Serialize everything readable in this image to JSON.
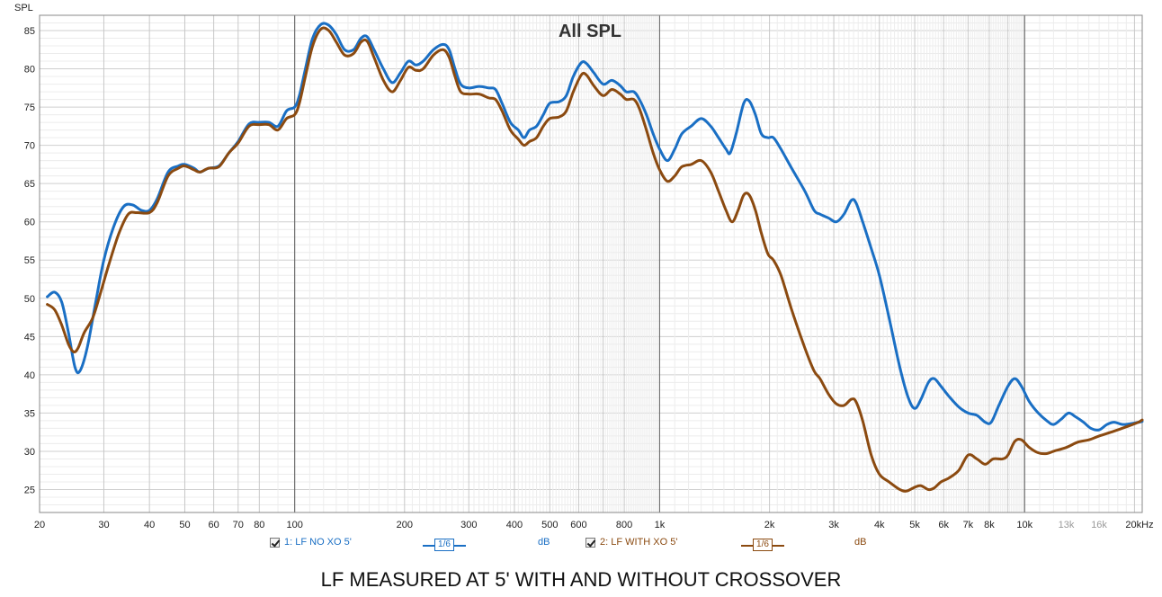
{
  "chart_data": {
    "type": "line",
    "title": "All SPL",
    "ylabel": "SPL",
    "xlabel": "",
    "x_scale": "log",
    "xlim": [
      20,
      21000
    ],
    "ylim": [
      22,
      87
    ],
    "grid": true,
    "y_ticks": [
      25,
      30,
      35,
      40,
      45,
      50,
      55,
      60,
      65,
      70,
      75,
      80,
      85
    ],
    "x_ticks": [
      {
        "value": 20,
        "label": "20"
      },
      {
        "value": 30,
        "label": "30"
      },
      {
        "value": 40,
        "label": "40"
      },
      {
        "value": 50,
        "label": "50"
      },
      {
        "value": 60,
        "label": "60"
      },
      {
        "value": 70,
        "label": "70"
      },
      {
        "value": 80,
        "label": "80"
      },
      {
        "value": 100,
        "label": "100"
      },
      {
        "value": 200,
        "label": "200"
      },
      {
        "value": 300,
        "label": "300"
      },
      {
        "value": 400,
        "label": "400"
      },
      {
        "value": 500,
        "label": "500"
      },
      {
        "value": 600,
        "label": "600"
      },
      {
        "value": 800,
        "label": "800"
      },
      {
        "value": 1000,
        "label": "1k"
      },
      {
        "value": 2000,
        "label": "2k"
      },
      {
        "value": 3000,
        "label": "3k"
      },
      {
        "value": 4000,
        "label": "4k"
      },
      {
        "value": 5000,
        "label": "5k"
      },
      {
        "value": 6000,
        "label": "6k"
      },
      {
        "value": 7000,
        "label": "7k"
      },
      {
        "value": 8000,
        "label": "8k"
      },
      {
        "value": 10000,
        "label": "10k"
      },
      {
        "value": 13000,
        "label": "13k",
        "muted": true
      },
      {
        "value": 16000,
        "label": "16k",
        "muted": true
      },
      {
        "value": 20000,
        "label": "20kHz"
      }
    ],
    "series": [
      {
        "name": "1: LF NO XO 5'",
        "color": "#1a6fc4",
        "points": [
          [
            21,
            50.2
          ],
          [
            22,
            50.8
          ],
          [
            23,
            49.5
          ],
          [
            24,
            45.5
          ],
          [
            25,
            41.0
          ],
          [
            25.8,
            40.5
          ],
          [
            27,
            43.5
          ],
          [
            28.5,
            49.5
          ],
          [
            30,
            55.0
          ],
          [
            32,
            59.5
          ],
          [
            34,
            62.0
          ],
          [
            36,
            62.2
          ],
          [
            38,
            61.5
          ],
          [
            40,
            61.5
          ],
          [
            42,
            63.0
          ],
          [
            45,
            66.5
          ],
          [
            48,
            67.3
          ],
          [
            50,
            67.5
          ],
          [
            53,
            67.0
          ],
          [
            55,
            66.5
          ],
          [
            58,
            67.0
          ],
          [
            62,
            67.3
          ],
          [
            66,
            69.0
          ],
          [
            70,
            70.5
          ],
          [
            75,
            72.8
          ],
          [
            80,
            73.0
          ],
          [
            85,
            73.0
          ],
          [
            90,
            72.5
          ],
          [
            95,
            74.5
          ],
          [
            100,
            75.0
          ],
          [
            103,
            76.5
          ],
          [
            107,
            80.0
          ],
          [
            112,
            84.0
          ],
          [
            118,
            85.8
          ],
          [
            124,
            85.7
          ],
          [
            130,
            84.5
          ],
          [
            137,
            82.5
          ],
          [
            145,
            82.5
          ],
          [
            152,
            84.0
          ],
          [
            158,
            84.2
          ],
          [
            165,
            82.5
          ],
          [
            175,
            80.0
          ],
          [
            185,
            78.2
          ],
          [
            195,
            79.5
          ],
          [
            205,
            81.0
          ],
          [
            215,
            80.5
          ],
          [
            225,
            81.0
          ],
          [
            240,
            82.5
          ],
          [
            255,
            83.2
          ],
          [
            265,
            82.5
          ],
          [
            275,
            80.0
          ],
          [
            285,
            78.0
          ],
          [
            300,
            77.5
          ],
          [
            320,
            77.7
          ],
          [
            340,
            77.5
          ],
          [
            355,
            77.3
          ],
          [
            370,
            75.5
          ],
          [
            390,
            73.0
          ],
          [
            410,
            72.0
          ],
          [
            425,
            71.0
          ],
          [
            440,
            72.0
          ],
          [
            460,
            72.5
          ],
          [
            480,
            74.0
          ],
          [
            500,
            75.5
          ],
          [
            530,
            75.7
          ],
          [
            555,
            76.5
          ],
          [
            580,
            79.0
          ],
          [
            610,
            80.8
          ],
          [
            630,
            80.7
          ],
          [
            660,
            79.5
          ],
          [
            700,
            78.0
          ],
          [
            740,
            78.5
          ],
          [
            780,
            77.8
          ],
          [
            810,
            77.0
          ],
          [
            850,
            77.0
          ],
          [
            880,
            76.0
          ],
          [
            920,
            74.0
          ],
          [
            960,
            71.5
          ],
          [
            1000,
            69.5
          ],
          [
            1050,
            68.0
          ],
          [
            1100,
            69.5
          ],
          [
            1150,
            71.5
          ],
          [
            1220,
            72.5
          ],
          [
            1300,
            73.5
          ],
          [
            1380,
            72.5
          ],
          [
            1450,
            71.0
          ],
          [
            1520,
            69.5
          ],
          [
            1560,
            69.0
          ],
          [
            1620,
            71.5
          ],
          [
            1700,
            75.5
          ],
          [
            1760,
            75.8
          ],
          [
            1830,
            74.0
          ],
          [
            1900,
            71.5
          ],
          [
            1980,
            71.0
          ],
          [
            2050,
            71.0
          ],
          [
            2150,
            69.5
          ],
          [
            2300,
            67.0
          ],
          [
            2500,
            64.0
          ],
          [
            2650,
            61.5
          ],
          [
            2750,
            61.0
          ],
          [
            2900,
            60.5
          ],
          [
            3050,
            60.0
          ],
          [
            3200,
            61.0
          ],
          [
            3350,
            62.8
          ],
          [
            3450,
            62.5
          ],
          [
            3600,
            60.0
          ],
          [
            3800,
            56.5
          ],
          [
            4000,
            53.0
          ],
          [
            4250,
            47.5
          ],
          [
            4550,
            41.0
          ],
          [
            4800,
            37.0
          ],
          [
            5000,
            35.6
          ],
          [
            5200,
            36.8
          ],
          [
            5450,
            39.0
          ],
          [
            5650,
            39.5
          ],
          [
            5900,
            38.5
          ],
          [
            6200,
            37.2
          ],
          [
            6600,
            35.8
          ],
          [
            7000,
            35.0
          ],
          [
            7400,
            34.7
          ],
          [
            7800,
            33.8
          ],
          [
            8100,
            33.8
          ],
          [
            8500,
            36.0
          ],
          [
            9000,
            38.5
          ],
          [
            9400,
            39.5
          ],
          [
            9800,
            38.5
          ],
          [
            10300,
            36.5
          ],
          [
            10900,
            35.0
          ],
          [
            11500,
            34.0
          ],
          [
            12000,
            33.5
          ],
          [
            12600,
            34.2
          ],
          [
            13200,
            35.0
          ],
          [
            13800,
            34.5
          ],
          [
            14500,
            33.8
          ],
          [
            15200,
            33.0
          ],
          [
            16000,
            32.8
          ],
          [
            16800,
            33.5
          ],
          [
            17600,
            33.8
          ],
          [
            18600,
            33.5
          ],
          [
            20000,
            33.7
          ],
          [
            21000,
            33.9
          ]
        ]
      },
      {
        "name": "2: LF WITH XO 5'",
        "color": "#8b4a10",
        "points": [
          [
            21,
            49.2
          ],
          [
            22,
            48.5
          ],
          [
            23,
            46.5
          ],
          [
            24,
            44.0
          ],
          [
            24.8,
            43.0
          ],
          [
            25.5,
            43.5
          ],
          [
            26.5,
            45.5
          ],
          [
            28,
            47.5
          ],
          [
            29.5,
            51.0
          ],
          [
            31,
            54.5
          ],
          [
            33,
            58.5
          ],
          [
            35,
            61.0
          ],
          [
            37,
            61.2
          ],
          [
            40,
            61.2
          ],
          [
            42,
            62.5
          ],
          [
            45,
            66.0
          ],
          [
            48,
            67.0
          ],
          [
            50,
            67.3
          ],
          [
            53,
            66.8
          ],
          [
            55,
            66.5
          ],
          [
            58,
            67.0
          ],
          [
            62,
            67.2
          ],
          [
            66,
            69.0
          ],
          [
            70,
            70.3
          ],
          [
            75,
            72.5
          ],
          [
            80,
            72.7
          ],
          [
            85,
            72.7
          ],
          [
            90,
            72.0
          ],
          [
            95,
            73.5
          ],
          [
            100,
            74.0
          ],
          [
            103,
            75.5
          ],
          [
            107,
            79.0
          ],
          [
            112,
            83.0
          ],
          [
            118,
            85.2
          ],
          [
            124,
            85.0
          ],
          [
            130,
            83.5
          ],
          [
            137,
            81.8
          ],
          [
            145,
            82.0
          ],
          [
            152,
            83.5
          ],
          [
            158,
            83.6
          ],
          [
            165,
            81.5
          ],
          [
            175,
            78.5
          ],
          [
            185,
            77.0
          ],
          [
            195,
            78.5
          ],
          [
            205,
            80.2
          ],
          [
            215,
            79.8
          ],
          [
            225,
            80.0
          ],
          [
            240,
            81.8
          ],
          [
            255,
            82.5
          ],
          [
            265,
            81.5
          ],
          [
            275,
            79.0
          ],
          [
            285,
            77.0
          ],
          [
            300,
            76.7
          ],
          [
            320,
            76.7
          ],
          [
            340,
            76.2
          ],
          [
            355,
            76.0
          ],
          [
            370,
            74.5
          ],
          [
            390,
            72.0
          ],
          [
            410,
            70.8
          ],
          [
            425,
            70.0
          ],
          [
            440,
            70.5
          ],
          [
            460,
            71.0
          ],
          [
            480,
            72.5
          ],
          [
            500,
            73.5
          ],
          [
            530,
            73.7
          ],
          [
            555,
            74.5
          ],
          [
            580,
            77.0
          ],
          [
            610,
            79.2
          ],
          [
            630,
            79.2
          ],
          [
            660,
            77.8
          ],
          [
            700,
            76.5
          ],
          [
            740,
            77.3
          ],
          [
            780,
            76.7
          ],
          [
            810,
            76.0
          ],
          [
            850,
            76.0
          ],
          [
            880,
            74.8
          ],
          [
            920,
            72.0
          ],
          [
            960,
            69.0
          ],
          [
            1000,
            66.8
          ],
          [
            1050,
            65.3
          ],
          [
            1100,
            66.0
          ],
          [
            1150,
            67.2
          ],
          [
            1220,
            67.5
          ],
          [
            1300,
            68.0
          ],
          [
            1380,
            66.5
          ],
          [
            1450,
            64.0
          ],
          [
            1520,
            61.5
          ],
          [
            1580,
            60.0
          ],
          [
            1640,
            61.5
          ],
          [
            1700,
            63.5
          ],
          [
            1760,
            63.5
          ],
          [
            1830,
            61.5
          ],
          [
            1900,
            58.5
          ],
          [
            1980,
            55.8
          ],
          [
            2050,
            55.0
          ],
          [
            2150,
            53.0
          ],
          [
            2300,
            48.5
          ],
          [
            2500,
            43.5
          ],
          [
            2650,
            40.5
          ],
          [
            2750,
            39.5
          ],
          [
            2900,
            37.5
          ],
          [
            3050,
            36.2
          ],
          [
            3200,
            36.0
          ],
          [
            3350,
            36.8
          ],
          [
            3450,
            36.5
          ],
          [
            3600,
            34.0
          ],
          [
            3800,
            29.5
          ],
          [
            4000,
            27.0
          ],
          [
            4250,
            26.0
          ],
          [
            4550,
            25.0
          ],
          [
            4750,
            24.8
          ],
          [
            5000,
            25.3
          ],
          [
            5200,
            25.5
          ],
          [
            5450,
            25.0
          ],
          [
            5650,
            25.2
          ],
          [
            5900,
            26.0
          ],
          [
            6200,
            26.5
          ],
          [
            6600,
            27.5
          ],
          [
            7000,
            29.5
          ],
          [
            7400,
            29.0
          ],
          [
            7800,
            28.3
          ],
          [
            8200,
            29.0
          ],
          [
            8700,
            29.0
          ],
          [
            9000,
            29.5
          ],
          [
            9400,
            31.3
          ],
          [
            9800,
            31.5
          ],
          [
            10300,
            30.5
          ],
          [
            10900,
            29.8
          ],
          [
            11500,
            29.7
          ],
          [
            12000,
            30.0
          ],
          [
            13000,
            30.5
          ],
          [
            14000,
            31.2
          ],
          [
            15000,
            31.5
          ],
          [
            16000,
            32.0
          ],
          [
            17500,
            32.6
          ],
          [
            19000,
            33.2
          ],
          [
            20500,
            33.8
          ],
          [
            21000,
            34.1
          ]
        ]
      }
    ]
  },
  "legend": {
    "items": [
      {
        "checked": true,
        "label": "1: LF NO XO 5'",
        "smoothing": "1/6",
        "unit": "dB"
      },
      {
        "checked": true,
        "label": "2: LF WITH XO 5'",
        "smoothing": "1/6",
        "unit": "dB"
      }
    ]
  },
  "caption": "LF MEASURED AT 5' WITH AND WITHOUT CROSSOVER"
}
